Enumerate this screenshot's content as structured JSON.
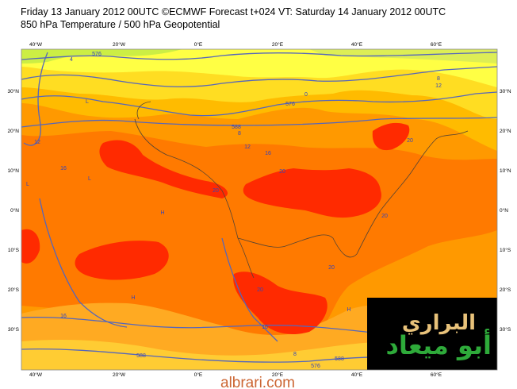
{
  "header": {
    "title": "Friday 13 January 2012 00UTC ©ECMWF Forecast t+024 VT: Saturday 14 January 2012 00UTC",
    "subtitle": "850 hPa Temperature / 500 hPa Geopotential"
  },
  "map": {
    "lon_labels": [
      "40°W",
      "20°W",
      "0°E",
      "20°E",
      "40°E",
      "60°E"
    ],
    "lat_labels": [
      "30°N",
      "20°N",
      "10°N",
      "0°N",
      "10°S",
      "20°S",
      "30°S"
    ],
    "contour_labels": [
      "4",
      "576",
      "0",
      "576",
      "8",
      "12",
      "588",
      "8",
      "12",
      "16",
      "16",
      "12",
      "20",
      "20",
      "20",
      "20",
      "20",
      "20",
      "16",
      "16",
      "588",
      "8",
      "576",
      "588",
      "L",
      "H",
      "L",
      "H",
      "L",
      "H"
    ]
  },
  "logo": {
    "line1": "البراري",
    "line2": "أبو ميعاد"
  },
  "watermark": "albrari.com"
}
